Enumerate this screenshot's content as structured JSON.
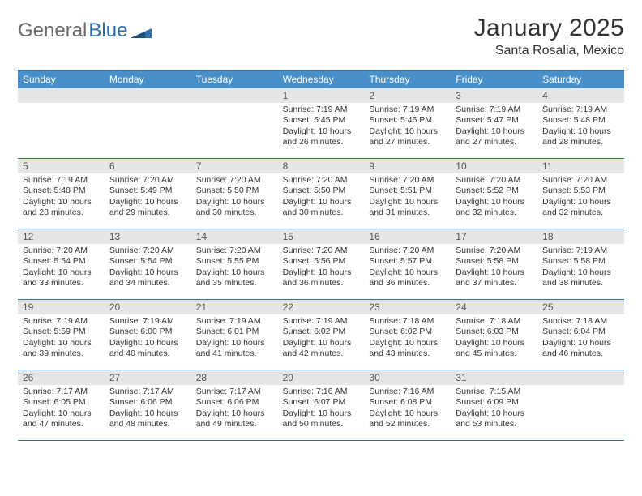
{
  "logo": {
    "part1": "General",
    "part2": "Blue"
  },
  "title": "January 2025",
  "subtitle": "Santa Rosalia, Mexico",
  "colors": {
    "header_bg": "#4a90c8",
    "header_border": "#2f6fa8",
    "daynum_bg": "#e6e6e6",
    "text": "#333333",
    "logo_gray": "#6a6a6a",
    "logo_blue": "#2f6fa8"
  },
  "day_names": [
    "Sunday",
    "Monday",
    "Tuesday",
    "Wednesday",
    "Thursday",
    "Friday",
    "Saturday"
  ],
  "weeks": [
    [
      {
        "day": "",
        "sunrise": "",
        "sunset": "",
        "daylight": ""
      },
      {
        "day": "",
        "sunrise": "",
        "sunset": "",
        "daylight": ""
      },
      {
        "day": "",
        "sunrise": "",
        "sunset": "",
        "daylight": ""
      },
      {
        "day": "1",
        "sunrise": "Sunrise: 7:19 AM",
        "sunset": "Sunset: 5:45 PM",
        "daylight": "Daylight: 10 hours and 26 minutes."
      },
      {
        "day": "2",
        "sunrise": "Sunrise: 7:19 AM",
        "sunset": "Sunset: 5:46 PM",
        "daylight": "Daylight: 10 hours and 27 minutes."
      },
      {
        "day": "3",
        "sunrise": "Sunrise: 7:19 AM",
        "sunset": "Sunset: 5:47 PM",
        "daylight": "Daylight: 10 hours and 27 minutes."
      },
      {
        "day": "4",
        "sunrise": "Sunrise: 7:19 AM",
        "sunset": "Sunset: 5:48 PM",
        "daylight": "Daylight: 10 hours and 28 minutes."
      }
    ],
    [
      {
        "day": "5",
        "sunrise": "Sunrise: 7:19 AM",
        "sunset": "Sunset: 5:48 PM",
        "daylight": "Daylight: 10 hours and 28 minutes."
      },
      {
        "day": "6",
        "sunrise": "Sunrise: 7:20 AM",
        "sunset": "Sunset: 5:49 PM",
        "daylight": "Daylight: 10 hours and 29 minutes."
      },
      {
        "day": "7",
        "sunrise": "Sunrise: 7:20 AM",
        "sunset": "Sunset: 5:50 PM",
        "daylight": "Daylight: 10 hours and 30 minutes."
      },
      {
        "day": "8",
        "sunrise": "Sunrise: 7:20 AM",
        "sunset": "Sunset: 5:50 PM",
        "daylight": "Daylight: 10 hours and 30 minutes."
      },
      {
        "day": "9",
        "sunrise": "Sunrise: 7:20 AM",
        "sunset": "Sunset: 5:51 PM",
        "daylight": "Daylight: 10 hours and 31 minutes."
      },
      {
        "day": "10",
        "sunrise": "Sunrise: 7:20 AM",
        "sunset": "Sunset: 5:52 PM",
        "daylight": "Daylight: 10 hours and 32 minutes."
      },
      {
        "day": "11",
        "sunrise": "Sunrise: 7:20 AM",
        "sunset": "Sunset: 5:53 PM",
        "daylight": "Daylight: 10 hours and 32 minutes."
      }
    ],
    [
      {
        "day": "12",
        "sunrise": "Sunrise: 7:20 AM",
        "sunset": "Sunset: 5:54 PM",
        "daylight": "Daylight: 10 hours and 33 minutes."
      },
      {
        "day": "13",
        "sunrise": "Sunrise: 7:20 AM",
        "sunset": "Sunset: 5:54 PM",
        "daylight": "Daylight: 10 hours and 34 minutes."
      },
      {
        "day": "14",
        "sunrise": "Sunrise: 7:20 AM",
        "sunset": "Sunset: 5:55 PM",
        "daylight": "Daylight: 10 hours and 35 minutes."
      },
      {
        "day": "15",
        "sunrise": "Sunrise: 7:20 AM",
        "sunset": "Sunset: 5:56 PM",
        "daylight": "Daylight: 10 hours and 36 minutes."
      },
      {
        "day": "16",
        "sunrise": "Sunrise: 7:20 AM",
        "sunset": "Sunset: 5:57 PM",
        "daylight": "Daylight: 10 hours and 36 minutes."
      },
      {
        "day": "17",
        "sunrise": "Sunrise: 7:20 AM",
        "sunset": "Sunset: 5:58 PM",
        "daylight": "Daylight: 10 hours and 37 minutes."
      },
      {
        "day": "18",
        "sunrise": "Sunrise: 7:19 AM",
        "sunset": "Sunset: 5:58 PM",
        "daylight": "Daylight: 10 hours and 38 minutes."
      }
    ],
    [
      {
        "day": "19",
        "sunrise": "Sunrise: 7:19 AM",
        "sunset": "Sunset: 5:59 PM",
        "daylight": "Daylight: 10 hours and 39 minutes."
      },
      {
        "day": "20",
        "sunrise": "Sunrise: 7:19 AM",
        "sunset": "Sunset: 6:00 PM",
        "daylight": "Daylight: 10 hours and 40 minutes."
      },
      {
        "day": "21",
        "sunrise": "Sunrise: 7:19 AM",
        "sunset": "Sunset: 6:01 PM",
        "daylight": "Daylight: 10 hours and 41 minutes."
      },
      {
        "day": "22",
        "sunrise": "Sunrise: 7:19 AM",
        "sunset": "Sunset: 6:02 PM",
        "daylight": "Daylight: 10 hours and 42 minutes."
      },
      {
        "day": "23",
        "sunrise": "Sunrise: 7:18 AM",
        "sunset": "Sunset: 6:02 PM",
        "daylight": "Daylight: 10 hours and 43 minutes."
      },
      {
        "day": "24",
        "sunrise": "Sunrise: 7:18 AM",
        "sunset": "Sunset: 6:03 PM",
        "daylight": "Daylight: 10 hours and 45 minutes."
      },
      {
        "day": "25",
        "sunrise": "Sunrise: 7:18 AM",
        "sunset": "Sunset: 6:04 PM",
        "daylight": "Daylight: 10 hours and 46 minutes."
      }
    ],
    [
      {
        "day": "26",
        "sunrise": "Sunrise: 7:17 AM",
        "sunset": "Sunset: 6:05 PM",
        "daylight": "Daylight: 10 hours and 47 minutes."
      },
      {
        "day": "27",
        "sunrise": "Sunrise: 7:17 AM",
        "sunset": "Sunset: 6:06 PM",
        "daylight": "Daylight: 10 hours and 48 minutes."
      },
      {
        "day": "28",
        "sunrise": "Sunrise: 7:17 AM",
        "sunset": "Sunset: 6:06 PM",
        "daylight": "Daylight: 10 hours and 49 minutes."
      },
      {
        "day": "29",
        "sunrise": "Sunrise: 7:16 AM",
        "sunset": "Sunset: 6:07 PM",
        "daylight": "Daylight: 10 hours and 50 minutes."
      },
      {
        "day": "30",
        "sunrise": "Sunrise: 7:16 AM",
        "sunset": "Sunset: 6:08 PM",
        "daylight": "Daylight: 10 hours and 52 minutes."
      },
      {
        "day": "31",
        "sunrise": "Sunrise: 7:15 AM",
        "sunset": "Sunset: 6:09 PM",
        "daylight": "Daylight: 10 hours and 53 minutes."
      },
      {
        "day": "",
        "sunrise": "",
        "sunset": "",
        "daylight": ""
      }
    ]
  ]
}
